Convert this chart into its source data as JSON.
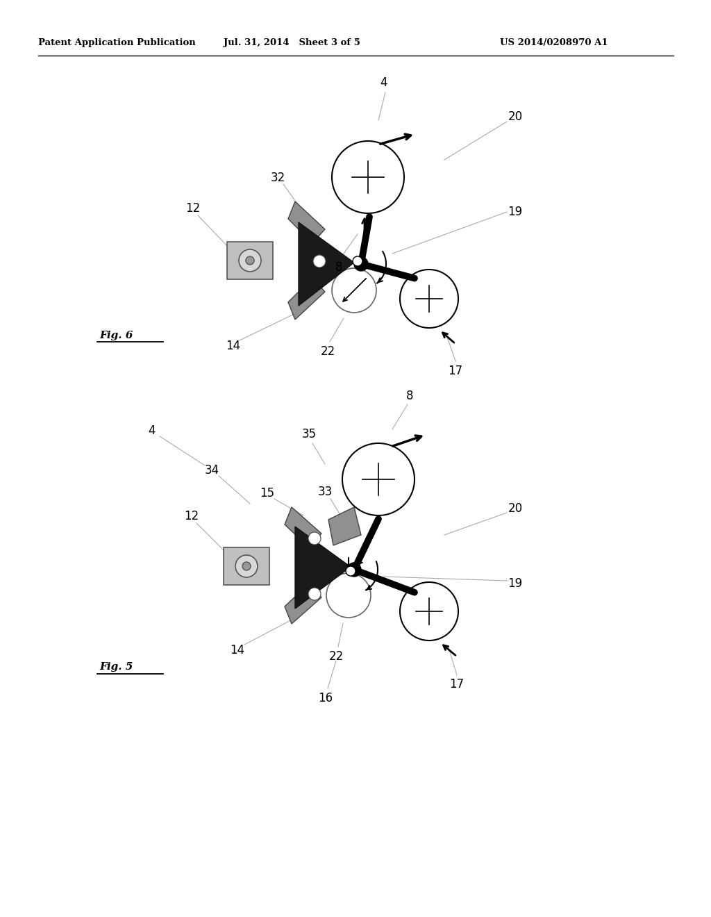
{
  "bg_color": "#ffffff",
  "header_text": "Patent Application Publication",
  "header_date": "Jul. 31, 2014   Sheet 3 of 5",
  "header_patent": "US 2014/0208970 A1",
  "fig6_label": "Fig. 6",
  "fig5_label": "Fig. 5"
}
